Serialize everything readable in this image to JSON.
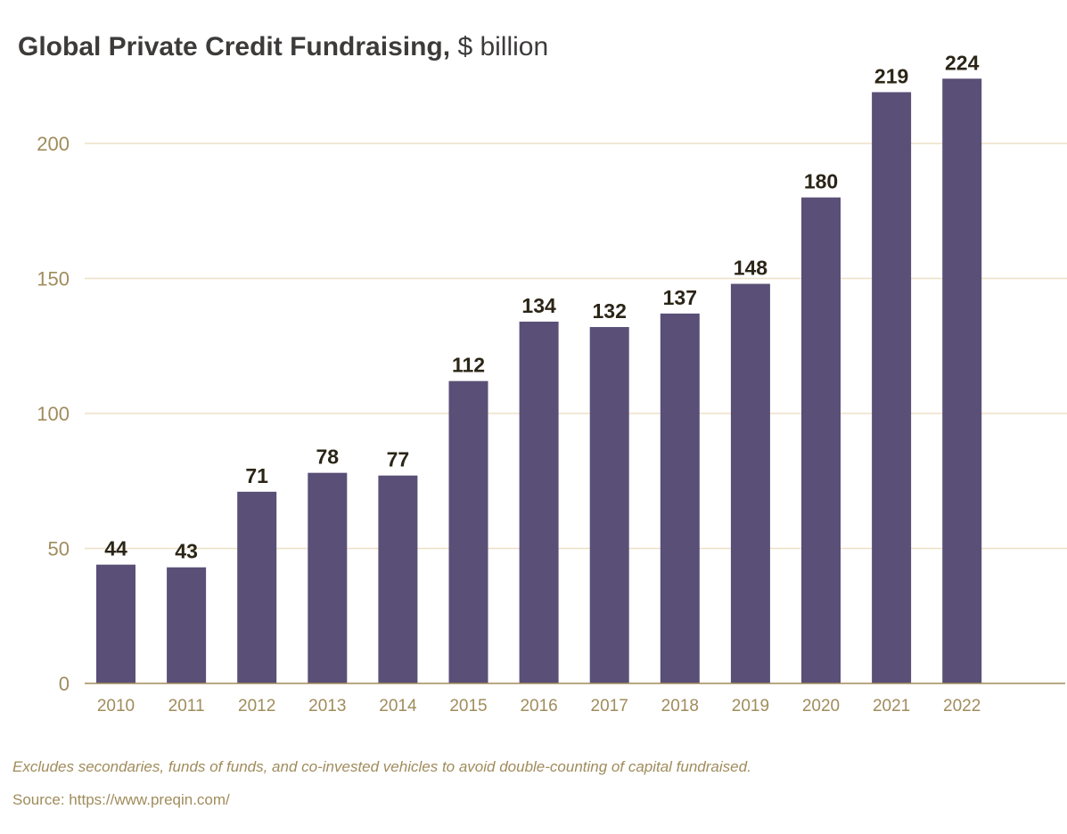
{
  "header": {
    "title_bold": "Global Private Credit Fundraising,",
    "title_unit": "$ billion"
  },
  "chart_data": {
    "type": "bar",
    "title": "Global Private Credit Fundraising, $ billion",
    "categories": [
      "2010",
      "2011",
      "2012",
      "2013",
      "2014",
      "2015",
      "2016",
      "2017",
      "2018",
      "2019",
      "2020",
      "2021",
      "2022"
    ],
    "values": [
      44,
      43,
      71,
      78,
      77,
      112,
      134,
      132,
      137,
      148,
      180,
      219,
      224
    ],
    "value_labels": [
      "44",
      "43",
      "71",
      "78",
      "77",
      "112",
      "134",
      "132",
      "137",
      "148",
      "180",
      "219",
      "224"
    ],
    "yticks": [
      0,
      50,
      100,
      150,
      200
    ],
    "ylim": [
      0,
      230
    ],
    "xlabel": "",
    "ylabel": "",
    "grid": true,
    "colors": {
      "bar": "#5a4f77",
      "grid": "#ede0c6",
      "axis": "#a08c5c",
      "tick_text": "#a08c5c",
      "value_text": "#2b2517"
    }
  },
  "footer": {
    "note": "Excludes secondaries, funds of funds, and co-invested vehicles to avoid double-counting of capital fundraised.",
    "source": "Source: https://www.preqin.com/"
  }
}
